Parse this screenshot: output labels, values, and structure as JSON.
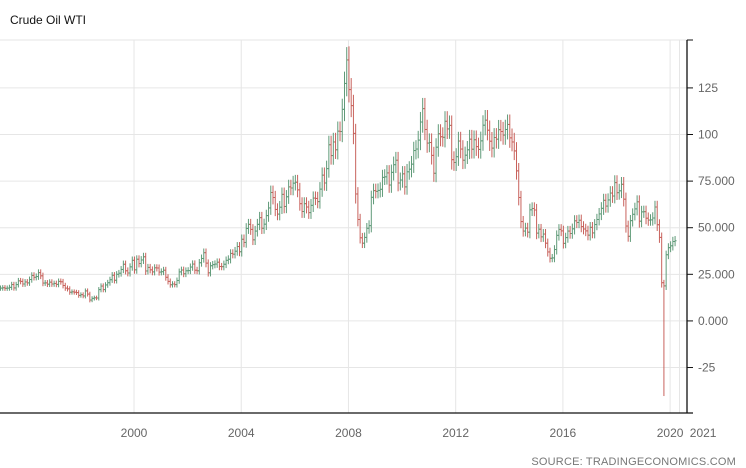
{
  "chart_data": {
    "type": "ohlc",
    "title": "Crude Oil WTI",
    "source": "SOURCE: TRADINGECONOMICS.COM",
    "xlabel": "",
    "ylabel": "",
    "first_month": "1995-01",
    "frequency": "monthly",
    "xlim": [
      1995.0,
      2020.63
    ],
    "ylim": [
      -49.4,
      150.7
    ],
    "grid": true,
    "y_axis_side": "right",
    "x_ticks": [
      {
        "value": 2000,
        "label": "2000"
      },
      {
        "value": 2004,
        "label": "2004"
      },
      {
        "value": 2008,
        "label": "2008"
      },
      {
        "value": 2012,
        "label": "2012"
      },
      {
        "value": 2016,
        "label": "2016"
      },
      {
        "value": 2020,
        "label": "2020"
      },
      {
        "value": 2020.35,
        "label": "2021"
      }
    ],
    "y_ticks": [
      {
        "value": 125,
        "label": "125"
      },
      {
        "value": 100,
        "label": "100"
      },
      {
        "value": 75,
        "label": "75.000"
      },
      {
        "value": 50,
        "label": "50.000"
      },
      {
        "value": 25,
        "label": "25.000"
      },
      {
        "value": 0,
        "label": "0.000"
      },
      {
        "value": -25,
        "label": "-25"
      }
    ],
    "colors": {
      "up": "#5f9a78",
      "down": "#c8625c",
      "grid": "#e6e6e6",
      "axis": "#111111"
    },
    "closes": [
      17.6,
      17.8,
      17.5,
      17.6,
      18.0,
      19.5,
      17.7,
      19.5,
      21.5,
      21.2,
      19.8,
      20.9,
      20.4,
      22.2,
      24.4,
      23.4,
      23.8,
      25.9,
      24.2,
      20.3,
      20.4,
      19.7,
      20.8,
      19.8,
      20.1,
      19.6,
      21.2,
      21.0,
      19.0,
      17.6,
      17.2,
      15.4,
      15.6,
      15.4,
      15.2,
      13.7,
      14.1,
      13.4,
      16.1,
      14.4,
      11.2,
      12.1,
      12.4,
      12.3,
      16.8,
      18.7,
      16.8,
      19.3,
      20.5,
      22.1,
      24.5,
      21.8,
      25.0,
      25.6,
      27.6,
      30.4,
      26.9,
      25.7,
      29.0,
      32.5,
      27.4,
      33.1,
      30.8,
      32.7,
      34.4,
      26.8,
      28.7,
      27.4,
      26.3,
      28.5,
      28.4,
      26.2,
      26.4,
      27.2,
      23.4,
      21.2,
      19.4,
      19.8,
      19.5,
      21.7,
      26.3,
      27.3,
      25.3,
      26.9,
      27.0,
      28.9,
      30.5,
      27.2,
      26.9,
      31.2,
      33.5,
      36.6,
      31.0,
      25.8,
      29.6,
      30.2,
      30.5,
      31.5,
      29.2,
      29.1,
      30.4,
      32.5,
      33.1,
      36.2,
      35.8,
      37.4,
      39.9,
      37.1,
      43.8,
      42.1,
      49.6,
      51.8,
      49.1,
      43.5,
      48.2,
      51.8,
      55.4,
      49.7,
      51.9,
      56.5,
      60.6,
      68.9,
      66.2,
      59.8,
      57.3,
      61.0,
      67.9,
      61.4,
      66.6,
      71.9,
      71.3,
      73.9,
      74.4,
      70.3,
      62.9,
      58.7,
      62.9,
      61.1,
      58.1,
      62.0,
      65.9,
      65.7,
      64.0,
      70.7,
      78.2,
      74.0,
      81.7,
      94.5,
      88.7,
      96.0,
      91.8,
      101.8,
      101.6,
      113.5,
      127.4,
      140.0,
      124.1,
      115.5,
      100.6,
      68.1,
      54.4,
      44.6,
      41.7,
      44.8,
      49.7,
      51.1,
      66.3,
      69.9,
      69.5,
      70.0,
      70.6,
      77.0,
      77.3,
      79.4,
      72.9,
      79.7,
      83.8,
      86.2,
      74.0,
      75.6,
      78.9,
      71.9,
      80.0,
      81.4,
      84.1,
      91.4,
      92.2,
      97.0,
      106.7,
      113.9,
      102.7,
      95.4,
      95.7,
      88.8,
      79.2,
      93.2,
      100.4,
      98.8,
      98.5,
      107.1,
      103.0,
      104.9,
      86.5,
      85.0,
      88.1,
      96.5,
      92.2,
      86.2,
      88.9,
      91.8,
      97.5,
      92.1,
      97.2,
      93.5,
      92.0,
      96.6,
      105.0,
      107.7,
      102.3,
      96.4,
      92.7,
      98.4,
      97.5,
      102.6,
      101.6,
      99.7,
      102.7,
      105.4,
      98.2,
      96.0,
      91.2,
      80.5,
      66.2,
      53.3,
      48.2,
      49.8,
      47.6,
      59.6,
      60.3,
      59.5,
      47.1,
      49.2,
      45.1,
      46.6,
      41.7,
      37.0,
      33.6,
      33.8,
      38.3,
      45.9,
      49.1,
      48.3,
      41.6,
      44.7,
      48.2,
      46.9,
      49.4,
      53.7,
      52.8,
      54.0,
      50.6,
      49.3,
      48.3,
      46.0,
      50.2,
      47.2,
      51.7,
      54.4,
      57.4,
      60.4,
      64.7,
      61.6,
      64.9,
      68.6,
      67.0,
      74.2,
      68.8,
      69.8,
      73.3,
      65.3,
      50.9,
      45.4,
      53.8,
      57.2,
      60.1,
      63.9,
      53.5,
      58.5,
      58.6,
      55.1,
      54.1,
      54.2,
      55.2,
      61.1,
      51.6,
      44.8,
      20.5,
      18.8,
      35.5,
      39.3,
      40.3,
      42.6,
      43.0
    ],
    "extremes": [
      {
        "index": 156,
        "high": 147.3
      },
      {
        "index": 297,
        "low": -40.3
      }
    ]
  }
}
